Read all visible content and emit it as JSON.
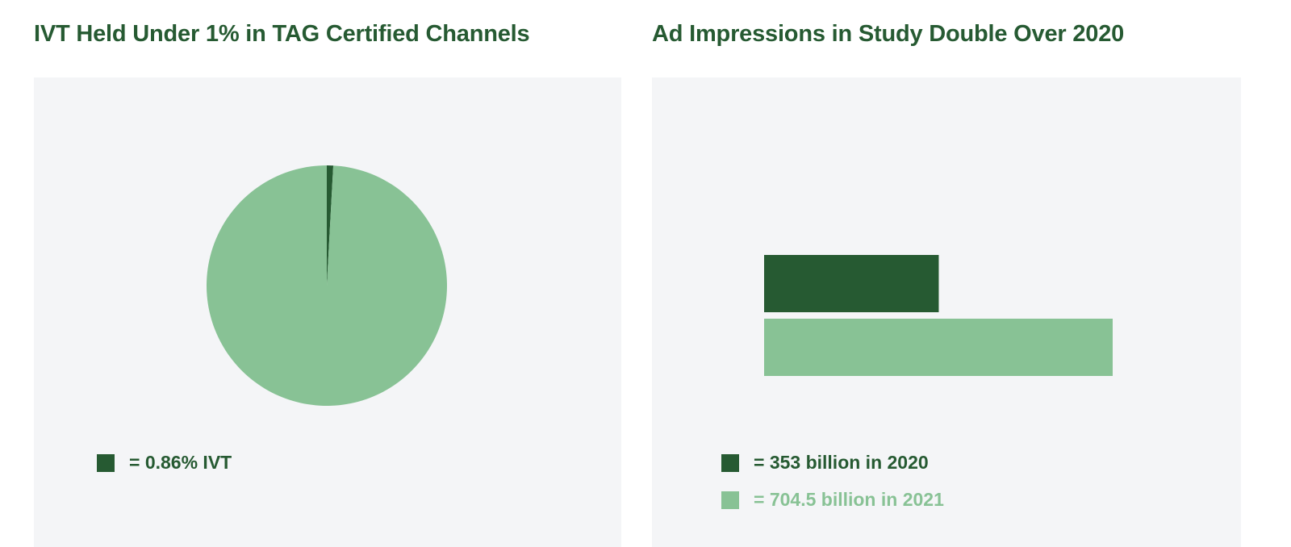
{
  "colors": {
    "dark_green": "#265a32",
    "light_green": "#88c295",
    "panel_bg": "#f4f5f7"
  },
  "chart_data": [
    {
      "type": "pie",
      "title": "IVT Held Under 1% in TAG Certified Channels",
      "slices": [
        {
          "value": 0.86,
          "color": "#265a32"
        },
        {
          "value": 99.14,
          "color": "#88c295"
        }
      ],
      "legend": {
        "placement": "bottom-left",
        "entries": [
          {
            "label": "= 0.86% IVT",
            "color": "#265a32"
          }
        ]
      }
    },
    {
      "type": "bar",
      "orientation": "horizontal",
      "title": "Ad Impressions in Study Double Over 2020",
      "categories": [
        "2020",
        "2021"
      ],
      "values": [
        353,
        704.5
      ],
      "colors": [
        "#265a32",
        "#88c295"
      ],
      "grid": false,
      "legend": {
        "placement": "bottom-left",
        "entries": [
          {
            "label": "= 353 billion in 2020",
            "color": "#265a32"
          },
          {
            "label": "= 704.5 billion in 2021",
            "color": "#88c295"
          }
        ]
      }
    }
  ]
}
